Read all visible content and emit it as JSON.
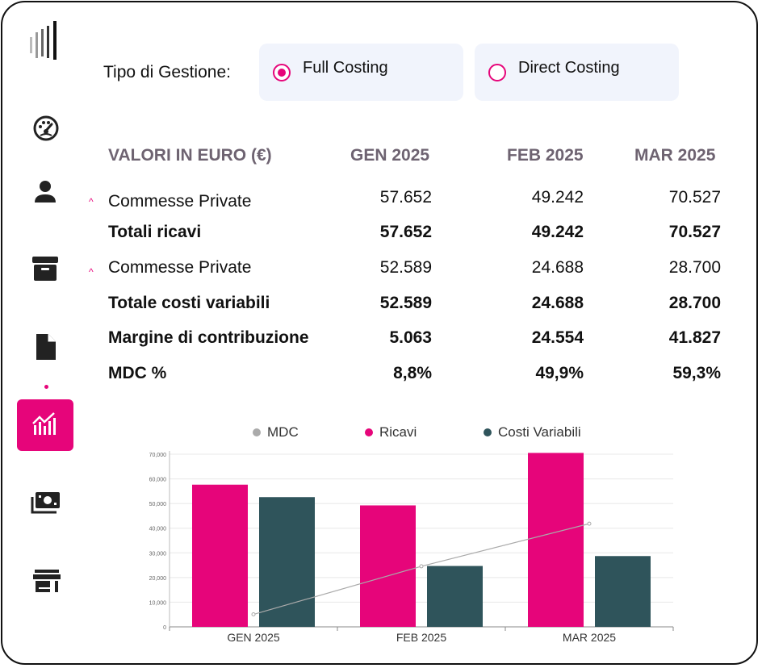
{
  "colors": {
    "accent": "#e6057a",
    "dark_teal": "#2f545b",
    "header_text": "#6e6371",
    "mdc_line": "#aaaaaa",
    "card_bg": "#f1f4fc"
  },
  "sidebar": {
    "logo": "bars-logo-icon",
    "items": [
      {
        "icon": "speedometer-icon"
      },
      {
        "icon": "user-icon"
      },
      {
        "icon": "archive-box-icon"
      },
      {
        "icon": "document-icon"
      },
      {
        "icon": "analytics-chart-icon",
        "active": true
      },
      {
        "icon": "money-icon"
      },
      {
        "icon": "store-icon"
      }
    ]
  },
  "mode": {
    "label": "Tipo di Gestione:",
    "options": [
      {
        "label": "Full Costing",
        "selected": true
      },
      {
        "label": "Direct Costing",
        "selected": false
      }
    ]
  },
  "table": {
    "header": [
      "VALORI IN EURO (€)",
      "GEN 2025",
      "FEB 2025",
      "MAR 2025"
    ],
    "rows": [
      {
        "label": "Commesse Private",
        "bold": false,
        "expandable": true,
        "values": [
          "57.652",
          "49.242",
          "70.527"
        ]
      },
      {
        "label": "Totali ricavi",
        "bold": true,
        "expandable": false,
        "values": [
          "57.652",
          "49.242",
          "70.527"
        ]
      },
      {
        "label": "Commesse Private",
        "bold": false,
        "expandable": true,
        "values": [
          "52.589",
          "24.688",
          "28.700"
        ]
      },
      {
        "label": "Totale costi variabili",
        "bold": true,
        "expandable": false,
        "values": [
          "52.589",
          "24.688",
          "28.700"
        ]
      },
      {
        "label": "Margine di contribuzione",
        "bold": true,
        "expandable": false,
        "values": [
          "5.063",
          "24.554",
          "41.827"
        ]
      },
      {
        "label": "MDC %",
        "bold": true,
        "expandable": false,
        "values": [
          "8,8%",
          "49,9%",
          "59,3%"
        ]
      }
    ],
    "caret": "^"
  },
  "chart_data": {
    "type": "bar",
    "categories": [
      "GEN 2025",
      "FEB 2025",
      "MAR 2025"
    ],
    "series": [
      {
        "name": "MDC",
        "type": "line",
        "values": [
          5063,
          24554,
          41827
        ]
      },
      {
        "name": "Ricavi",
        "type": "bar",
        "values": [
          57652,
          49242,
          70527
        ]
      },
      {
        "name": "Costi Variabili",
        "type": "bar",
        "values": [
          52589,
          24688,
          28700
        ]
      }
    ],
    "yticks": [
      "0",
      "10,000",
      "20,000",
      "30,000",
      "40,000",
      "50,000",
      "60,000",
      "70,000"
    ],
    "ylim": [
      0,
      70000
    ],
    "legend": [
      "MDC",
      "Ricavi",
      "Costi Variabili"
    ],
    "grid": true,
    "legend_position": "top"
  }
}
